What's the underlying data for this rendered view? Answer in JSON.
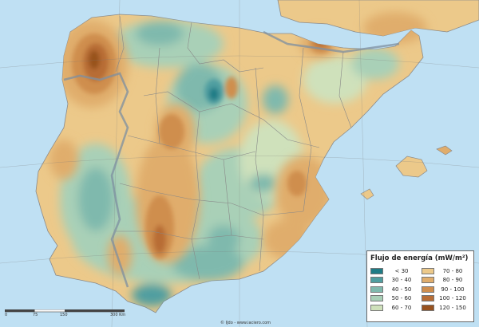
{
  "legend": {
    "title": "Flujo de energía (mW/m²)",
    "items": [
      {
        "label": "< 30",
        "color": "#1f7c86"
      },
      {
        "label": "70 - 80",
        "color": "#ecc98a"
      },
      {
        "label": "30 - 40",
        "color": "#4f9ea0"
      },
      {
        "label": "80 - 90",
        "color": "#e0ad6c"
      },
      {
        "label": "40 - 50",
        "color": "#7fb9ad"
      },
      {
        "label": "90 - 100",
        "color": "#cf8e4e"
      },
      {
        "label": "50 - 60",
        "color": "#a9d0b7"
      },
      {
        "label": "100 - 120",
        "color": "#b86d36"
      },
      {
        "label": "60 - 70",
        "color": "#cfe1bb"
      },
      {
        "label": "120 - 150",
        "color": "#98521f"
      }
    ]
  },
  "scale": {
    "ticks": [
      "0",
      "75",
      "150",
      "300 Km"
    ]
  },
  "credit": "© IJdo - www.iaciero.com"
}
